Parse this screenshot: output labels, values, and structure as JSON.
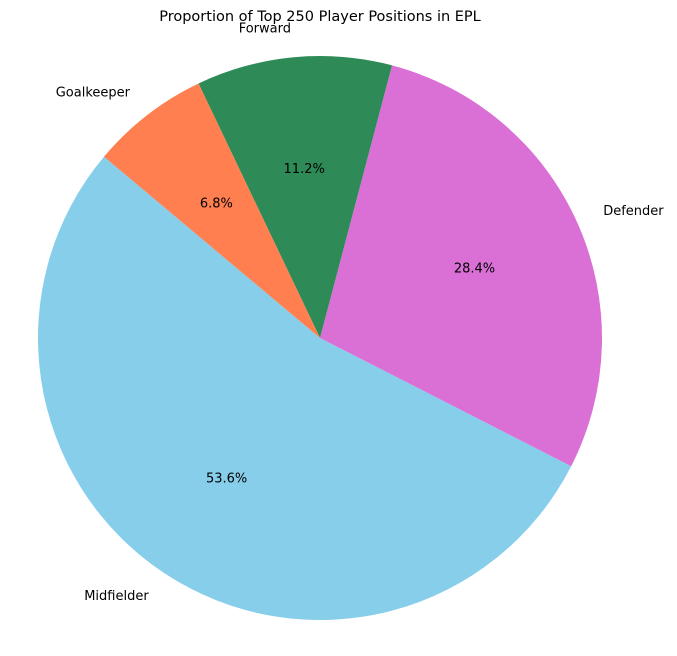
{
  "chart_data": {
    "type": "pie",
    "title": "Proportion of Top 250 Player Positions in EPL",
    "categories": [
      "Midfielder",
      "Defender",
      "Forward",
      "Goalkeeper"
    ],
    "values": [
      53.6,
      28.4,
      11.2,
      6.8
    ],
    "value_labels": [
      "53.6%",
      "28.4%",
      "11.2%",
      "6.8%"
    ],
    "colors": [
      "#87CEEB",
      "#DA70D6",
      "#2E8B57",
      "#FF7F50"
    ],
    "start_angle_deg": 140,
    "direction": "counterclockwise",
    "legend": "none"
  }
}
